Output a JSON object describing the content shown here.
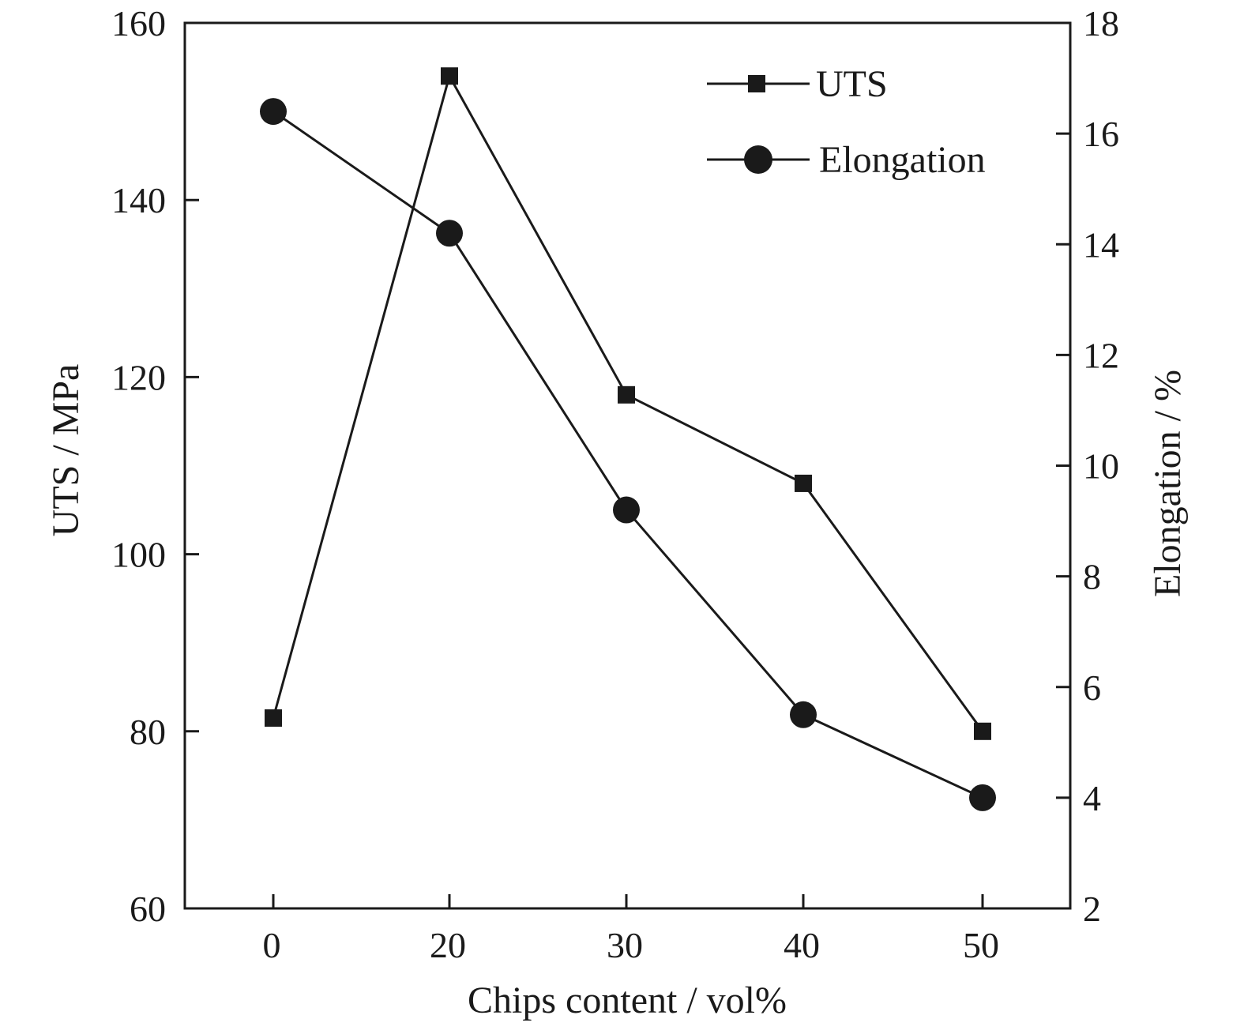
{
  "chart_data": {
    "type": "line",
    "title": "",
    "xlabel": "Chips content / vol%",
    "ylabel_left": "UTS / MPa",
    "ylabel_right": "Elongation / %",
    "categories": [
      "0",
      "20",
      "30",
      "40",
      "50"
    ],
    "yticks_left": [
      "60",
      "80",
      "100",
      "120",
      "140",
      "160"
    ],
    "yticks_right": [
      "2",
      "4",
      "6",
      "8",
      "10",
      "12",
      "14",
      "16",
      "18"
    ],
    "ylim_left": [
      60,
      160
    ],
    "ylim_right": [
      2,
      18
    ],
    "grid": false,
    "legend_position": "top-right",
    "colors": {
      "line": "#1a1a1a",
      "marker": "#1a1a1a",
      "axis": "#1a1a1a"
    },
    "series": [
      {
        "name": "UTS",
        "axis": "left",
        "marker": "square",
        "values": [
          81.5,
          154,
          118,
          108,
          80
        ]
      },
      {
        "name": "Elongation",
        "axis": "right",
        "marker": "circle",
        "values": [
          16.4,
          14.2,
          9.2,
          5.5,
          4.0
        ]
      }
    ]
  }
}
